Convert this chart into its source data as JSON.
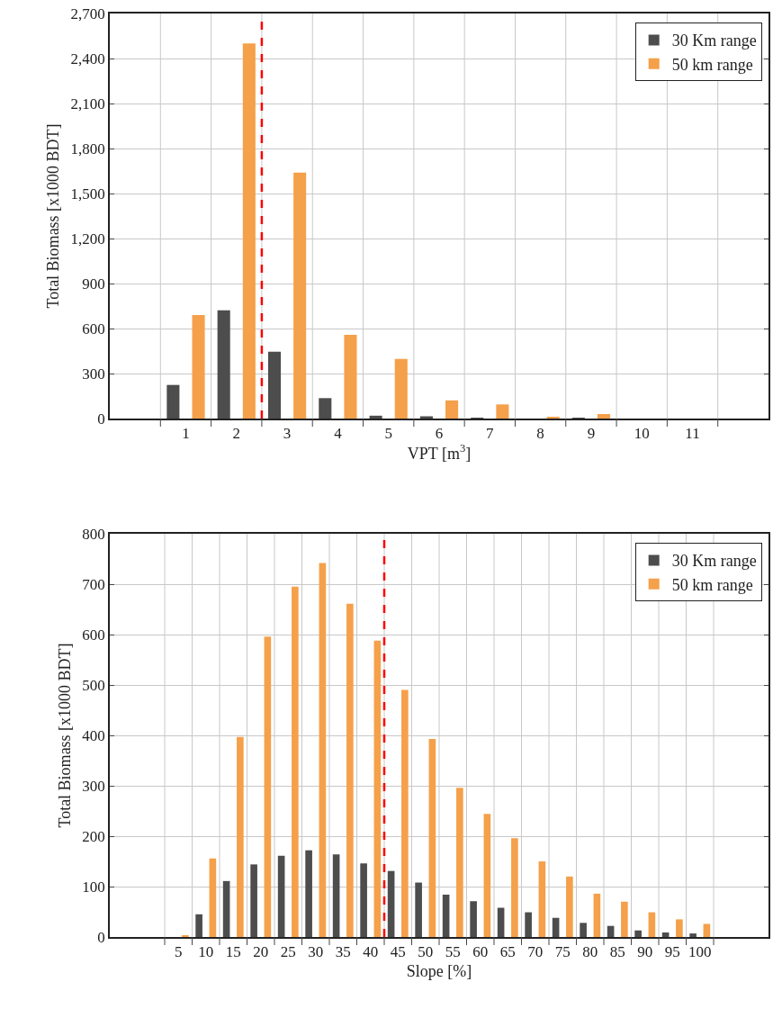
{
  "chart_data": [
    {
      "type": "bar",
      "xlabel": "VPT [m$^{3}$]",
      "ylabel": "Total Biomass [x1000 BDT]",
      "x": [
        1,
        2,
        3,
        4,
        5,
        6,
        7,
        8,
        9,
        10,
        11
      ],
      "series": [
        {
          "name": "30 Km range",
          "color": "#4d4d4d",
          "values": [
            224,
            722,
            445,
            136,
            19,
            15,
            3,
            0,
            3,
            0,
            0
          ]
        },
        {
          "name": "50 km range",
          "color": "#f5a04a",
          "values": [
            690,
            2500,
            1640,
            558,
            398,
            121,
            94,
            9,
            30,
            0,
            0
          ]
        }
      ],
      "xlim": [
        -0.5,
        12.5
      ],
      "xticks": [
        1,
        2,
        3,
        4,
        5,
        6,
        7,
        8,
        9,
        10,
        11
      ],
      "ylim": [
        0,
        2700
      ],
      "yticks": [
        0,
        300,
        600,
        900,
        {
          "value": 1200,
          "label": "1,200"
        },
        {
          "value": 1500,
          "label": "1,500"
        },
        {
          "value": 1800,
          "label": "1,800"
        },
        {
          "value": 2100,
          "label": "2,100"
        },
        {
          "value": 2400,
          "label": "2,400"
        },
        {
          "value": 2700,
          "label": "2,700"
        }
      ],
      "ref_lines": [
        {
          "axis": "x",
          "value": 2.5,
          "color": "#ff0000",
          "line_style": "dashed"
        }
      ],
      "grid": true,
      "legend": "top right"
    },
    {
      "type": "bar",
      "xlabel": "Slope [%]",
      "ylabel": "Total Biomass [x1000 BDT]",
      "x": [
        5,
        10,
        15,
        20,
        25,
        30,
        35,
        40,
        45,
        50,
        55,
        60,
        65,
        70,
        75,
        80,
        85,
        90,
        95,
        100
      ],
      "series": [
        {
          "name": "30 Km range",
          "color": "#4d4d4d",
          "values": [
            0,
            45,
            111,
            144,
            161,
            172,
            164,
            146,
            131,
            108,
            84,
            71,
            58,
            49,
            38,
            28,
            22,
            13,
            9,
            7
          ]
        },
        {
          "name": "50 km range",
          "color": "#f5a04a",
          "values": [
            3,
            156,
            397,
            596,
            695,
            742,
            661,
            588,
            490,
            393,
            296,
            244,
            196,
            150,
            120,
            86,
            70,
            49,
            35,
            26
          ]
        }
      ],
      "xlim": [
        -7.5,
        112.5
      ],
      "xticks": [
        5,
        10,
        15,
        20,
        25,
        30,
        35,
        40,
        45,
        50,
        55,
        60,
        65,
        70,
        75,
        80,
        85,
        90,
        95,
        100
      ],
      "ylim": [
        0,
        800
      ],
      "yticks": [
        0,
        100,
        200,
        300,
        400,
        500,
        600,
        700,
        800
      ],
      "ref_lines": [
        {
          "axis": "x",
          "value": 42.5,
          "color": "#ff0000",
          "line_style": "dashed"
        }
      ],
      "grid": true,
      "legend": "top right"
    }
  ]
}
